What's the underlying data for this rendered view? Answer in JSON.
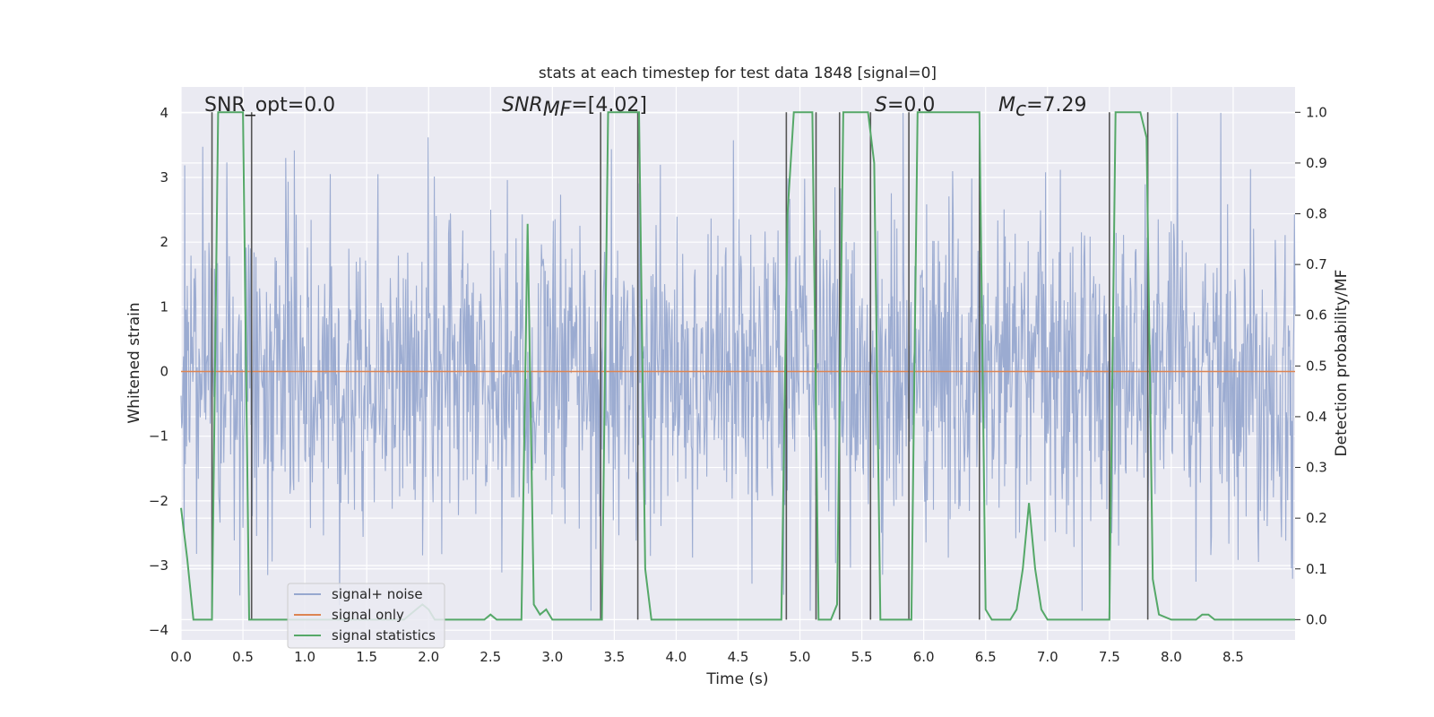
{
  "chart_data": {
    "type": "line",
    "title": "stats at each timestep for test data 1848 [signal=0]",
    "xlabel": "Time (s)",
    "ylabel": "Whitened strain",
    "y2label": "Detection probability/MF",
    "xlim": [
      0.0,
      9.0
    ],
    "ylim": [
      -4.15,
      4.4
    ],
    "y2lim": [
      -0.04,
      1.05
    ],
    "xticks": [
      0.0,
      0.5,
      1.0,
      1.5,
      2.0,
      2.5,
      3.0,
      3.5,
      4.0,
      4.5,
      5.0,
      5.5,
      6.0,
      6.5,
      7.0,
      7.5,
      8.0,
      8.5
    ],
    "xtick_labels": [
      "0.0",
      "0.5",
      "1.0",
      "1.5",
      "2.0",
      "2.5",
      "3.0",
      "3.5",
      "4.0",
      "4.5",
      "5.0",
      "5.5",
      "6.0",
      "6.5",
      "7.0",
      "7.5",
      "8.0",
      "8.5"
    ],
    "yticks": [
      -4,
      -3,
      -2,
      -1,
      0,
      1,
      2,
      3,
      4
    ],
    "ytick_labels": [
      "−4",
      "−3",
      "−2",
      "−1",
      "0",
      "1",
      "2",
      "3",
      "4"
    ],
    "y2ticks": [
      0.0,
      0.1,
      0.2,
      0.3,
      0.4,
      0.5,
      0.6,
      0.7,
      0.8,
      0.9,
      1.0
    ],
    "y2tick_labels": [
      "0.0",
      "0.1",
      "0.2",
      "0.3",
      "0.4",
      "0.5",
      "0.6",
      "0.7",
      "0.8",
      "0.9",
      "1.0"
    ],
    "annotations": {
      "snr_opt": "SNR_opt=0.0",
      "snr_mf_sym": "SNR",
      "snr_mf_sub": "MF",
      "snr_mf_val": "=[4.02]",
      "s_sym": "S",
      "s_val": "=0.0",
      "mc_sym": "M",
      "mc_sub": "c",
      "mc_val": "=7.29"
    },
    "series": [
      {
        "name": "signal+ noise",
        "color": "#97a8cf",
        "note": "whitened noise, roughly gaussian, amplitude mostly within -3.5..3.7",
        "sample_count": 1800,
        "clip": [
          -3.7,
          4.0
        ]
      },
      {
        "name": "signal only",
        "color": "#dd8452",
        "x": [
          0.0,
          9.0
        ],
        "y": [
          0.0,
          0.0
        ]
      },
      {
        "name": "signal statistics",
        "color": "#55a868",
        "x": [
          0.0,
          0.05,
          0.1,
          0.15,
          0.2,
          0.25,
          0.3,
          0.35,
          0.4,
          0.45,
          0.5,
          0.55,
          0.6,
          0.65,
          0.7,
          0.8,
          1.0,
          1.2,
          1.5,
          1.8,
          1.9,
          1.95,
          2.0,
          2.05,
          2.3,
          2.45,
          2.5,
          2.55,
          2.7,
          2.75,
          2.8,
          2.85,
          2.9,
          2.95,
          3.0,
          3.05,
          3.1,
          3.2,
          3.35,
          3.4,
          3.45,
          3.5,
          3.65,
          3.7,
          3.75,
          3.8,
          4.0,
          4.5,
          4.8,
          4.85,
          4.9,
          4.95,
          5.0,
          5.1,
          5.15,
          5.2,
          5.25,
          5.3,
          5.35,
          5.4,
          5.5,
          5.55,
          5.6,
          5.65,
          5.7,
          5.75,
          5.85,
          5.9,
          5.95,
          6.0,
          6.45,
          6.5,
          6.55,
          6.6,
          6.7,
          6.75,
          6.8,
          6.85,
          6.9,
          6.95,
          7.0,
          7.05,
          7.5,
          7.55,
          7.6,
          7.75,
          7.8,
          7.85,
          7.9,
          8.0,
          8.2,
          8.25,
          8.3,
          8.35,
          8.4,
          9.0
        ],
        "y": [
          0.22,
          0.12,
          0.0,
          0.0,
          0.0,
          0.0,
          1.0,
          1.0,
          1.0,
          1.0,
          1.0,
          0.0,
          0.0,
          0.0,
          0.0,
          0.0,
          0.0,
          0.0,
          0.0,
          0.0,
          0.02,
          0.03,
          0.02,
          0.0,
          0.0,
          0.0,
          0.01,
          0.0,
          0.0,
          0.0,
          0.78,
          0.03,
          0.01,
          0.02,
          0.0,
          0.0,
          0.0,
          0.0,
          0.0,
          0.0,
          1.0,
          1.0,
          1.0,
          1.0,
          0.1,
          0.0,
          0.0,
          0.0,
          0.0,
          0.0,
          0.8,
          1.0,
          1.0,
          1.0,
          0.0,
          0.0,
          0.0,
          0.03,
          1.0,
          1.0,
          1.0,
          1.0,
          0.9,
          0.0,
          0.0,
          0.0,
          0.0,
          0.0,
          1.0,
          1.0,
          1.0,
          0.02,
          0.0,
          0.0,
          0.0,
          0.02,
          0.1,
          0.23,
          0.1,
          0.02,
          0.0,
          0.0,
          0.0,
          1.0,
          1.0,
          1.0,
          0.95,
          0.08,
          0.01,
          0.0,
          0.0,
          0.01,
          0.01,
          0.0,
          0.0,
          0.0
        ]
      }
    ],
    "vertical_lines": [
      0.25,
      0.57,
      3.39,
      3.69,
      4.89,
      5.13,
      5.32,
      5.57,
      5.88,
      6.45,
      7.5,
      7.81
    ],
    "legend": {
      "position": "lower-left",
      "entries": [
        "signal+ noise",
        "signal only",
        "signal statistics"
      ]
    }
  },
  "colors": {
    "background": "#eaeaf2",
    "grid": "#ffffff",
    "vline": "#555555"
  }
}
